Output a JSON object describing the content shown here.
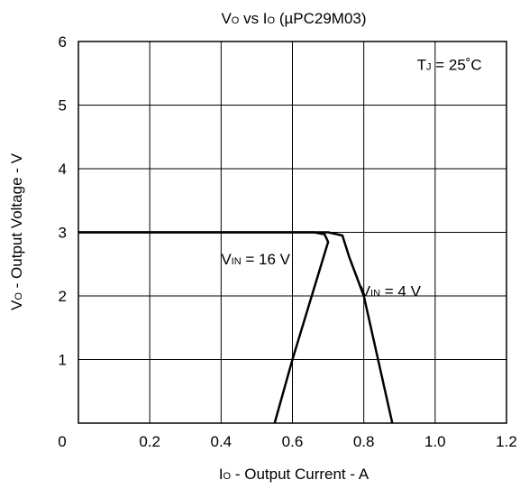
{
  "chart_data": {
    "type": "line",
    "title": {
      "base": "V",
      "sub": "O",
      "rest": " vs I",
      "sub2": "O",
      "tail": " (µPC29M03)"
    },
    "xlabel": {
      "base": "I",
      "sub": "O",
      "rest": " - Output Current - A"
    },
    "ylabel": {
      "base": "V",
      "sub": "O",
      "rest": " - Output Voltage - V"
    },
    "xlim": [
      0,
      1.2
    ],
    "ylim": [
      0,
      6
    ],
    "x_ticks": [
      "0",
      "0.2",
      "0.4",
      "0.6",
      "0.8",
      "1.0",
      "1.2"
    ],
    "y_ticks": [
      "1",
      "2",
      "3",
      "4",
      "5",
      "6"
    ],
    "grid": true,
    "annotation": {
      "text": "T",
      "sub": "J",
      "rest": " = 25˚C",
      "x": 1.04,
      "y": 5.55
    },
    "series": [
      {
        "name": "V_IN = 16 V",
        "label": {
          "base": "V",
          "sub": "IN",
          "rest": " = 16 V"
        },
        "label_anchor": [
          0.4,
          2.5
        ],
        "points": [
          [
            0,
            3.0
          ],
          [
            0.66,
            3.0
          ],
          [
            0.69,
            2.97
          ],
          [
            0.7,
            2.85
          ],
          [
            0.6,
            1.0
          ],
          [
            0.55,
            0.0
          ]
        ]
      },
      {
        "name": "V_IN = 4 V",
        "label": {
          "base": "V",
          "sub": "IN",
          "rest": " = 4 V"
        },
        "label_anchor": [
          0.79,
          1.99
        ],
        "points": [
          [
            0,
            3.0
          ],
          [
            0.7,
            3.0
          ],
          [
            0.74,
            2.95
          ],
          [
            0.76,
            2.6
          ],
          [
            0.8,
            2.0
          ],
          [
            0.88,
            0.0
          ]
        ]
      }
    ]
  }
}
